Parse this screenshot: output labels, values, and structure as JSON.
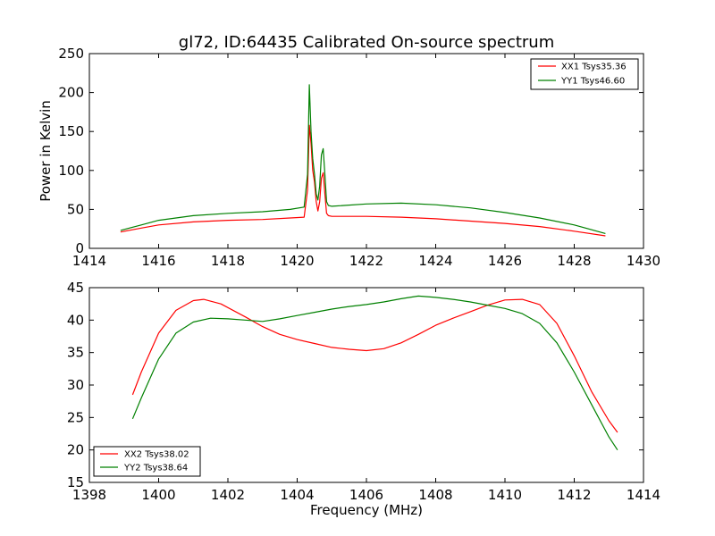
{
  "chart_data": [
    {
      "type": "line",
      "title": "gl72, ID:64435 Calibrated On-source spectrum",
      "xlabel": "",
      "ylabel": "Power in Kelvin",
      "xlim": [
        1414,
        1430
      ],
      "ylim": [
        0,
        250
      ],
      "xticks": [
        "1414",
        "1416",
        "1418",
        "1420",
        "1422",
        "1424",
        "1426",
        "1428",
        "1430"
      ],
      "yticks": [
        "0",
        "50",
        "100",
        "150",
        "200",
        "250"
      ],
      "legend_position": "top-right",
      "series": [
        {
          "name": "XX1 Tsys35.36",
          "color": "#ff0000",
          "x": [
            1414.9,
            1415.5,
            1416.0,
            1417.0,
            1418.0,
            1419.0,
            1419.8,
            1420.2,
            1420.3,
            1420.35,
            1420.4,
            1420.45,
            1420.5,
            1420.55,
            1420.6,
            1420.65,
            1420.7,
            1420.75,
            1420.8,
            1420.85,
            1420.9,
            1421.0,
            1422.0,
            1423.0,
            1424.0,
            1425.0,
            1426.0,
            1427.0,
            1428.0,
            1428.9
          ],
          "values": [
            21,
            26,
            30,
            34,
            36,
            37,
            39,
            40,
            75,
            158,
            135,
            100,
            85,
            60,
            48,
            60,
            90,
            97,
            70,
            45,
            42,
            41,
            41,
            40,
            38,
            35,
            32,
            28,
            22,
            16
          ]
        },
        {
          "name": "YY1 Tsys46.60",
          "color": "#008000",
          "x": [
            1414.9,
            1415.5,
            1416.0,
            1417.0,
            1418.0,
            1419.0,
            1419.8,
            1420.2,
            1420.3,
            1420.35,
            1420.4,
            1420.45,
            1420.5,
            1420.55,
            1420.6,
            1420.65,
            1420.7,
            1420.75,
            1420.8,
            1420.85,
            1420.9,
            1421.0,
            1422.0,
            1423.0,
            1424.0,
            1425.0,
            1426.0,
            1427.0,
            1428.0,
            1428.9
          ],
          "values": [
            23,
            30,
            36,
            42,
            45,
            47,
            50,
            53,
            95,
            210,
            150,
            115,
            95,
            70,
            62,
            80,
            120,
            128,
            95,
            60,
            55,
            54,
            57,
            58,
            56,
            52,
            46,
            39,
            30,
            19
          ]
        }
      ]
    },
    {
      "type": "line",
      "title": "",
      "xlabel": "Frequency (MHz)",
      "ylabel": "",
      "xlim": [
        1398,
        1414
      ],
      "ylim": [
        15,
        45
      ],
      "xticks": [
        "1398",
        "1400",
        "1402",
        "1404",
        "1406",
        "1408",
        "1410",
        "1412",
        "1414"
      ],
      "yticks": [
        "15",
        "20",
        "25",
        "30",
        "35",
        "40",
        "45"
      ],
      "legend_position": "bottom-left",
      "series": [
        {
          "name": "XX2 Tsys38.02",
          "color": "#ff0000",
          "x": [
            1399.25,
            1399.5,
            1400.0,
            1400.5,
            1401.0,
            1401.3,
            1401.8,
            1402.5,
            1403.0,
            1403.5,
            1404.0,
            1404.5,
            1405.0,
            1405.5,
            1406.0,
            1406.5,
            1407.0,
            1407.5,
            1408.0,
            1408.5,
            1409.0,
            1409.5,
            1410.0,
            1410.5,
            1411.0,
            1411.5,
            1412.0,
            1412.5,
            1413.0,
            1413.25
          ],
          "values": [
            28.5,
            32,
            38,
            41.5,
            43,
            43.2,
            42.5,
            40.5,
            39,
            37.8,
            37,
            36.4,
            35.8,
            35.5,
            35.3,
            35.6,
            36.5,
            37.8,
            39.2,
            40.3,
            41.3,
            42.3,
            43.1,
            43.2,
            42.4,
            39.5,
            34.5,
            29,
            24.5,
            22.7
          ]
        },
        {
          "name": "YY2 Tsys38.64",
          "color": "#008000",
          "x": [
            1399.25,
            1399.5,
            1400.0,
            1400.5,
            1401.0,
            1401.5,
            1402.0,
            1402.5,
            1403.0,
            1403.5,
            1404.0,
            1404.5,
            1405.0,
            1405.5,
            1406.0,
            1406.5,
            1407.0,
            1407.5,
            1408.0,
            1408.5,
            1409.0,
            1409.5,
            1410.0,
            1410.5,
            1411.0,
            1411.5,
            1412.0,
            1412.5,
            1413.0,
            1413.25
          ],
          "values": [
            24.8,
            28,
            34,
            38,
            39.7,
            40.3,
            40.2,
            40.0,
            39.8,
            40.2,
            40.7,
            41.2,
            41.7,
            42.1,
            42.4,
            42.8,
            43.3,
            43.7,
            43.5,
            43.2,
            42.8,
            42.3,
            41.8,
            41,
            39.5,
            36.5,
            32,
            27,
            22,
            20
          ]
        }
      ]
    }
  ]
}
